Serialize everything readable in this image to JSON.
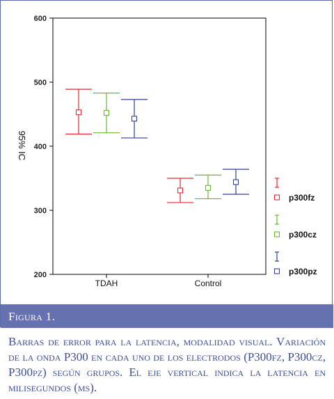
{
  "chart_data": {
    "type": "errorbar",
    "ylabel": "95% IC",
    "ylim": [
      200,
      600
    ],
    "yticks": [
      "200",
      "300",
      "400",
      "500",
      "600"
    ],
    "categories": [
      "TDAH",
      "Control"
    ],
    "grid": false,
    "legend_position": "right",
    "series": [
      {
        "name": "p300fz",
        "color": "#e8262b",
        "mean": [
          453,
          331
        ],
        "lower": [
          419,
          312
        ],
        "upper": [
          489,
          350
        ]
      },
      {
        "name": "p300cz",
        "color": "#66bb2e",
        "mean": [
          452,
          335
        ],
        "lower": [
          421,
          318
        ],
        "upper": [
          483,
          355
        ]
      },
      {
        "name": "p300pz",
        "color": "#2c3f9e",
        "mean": [
          443,
          344
        ],
        "lower": [
          413,
          325
        ],
        "upper": [
          473,
          364
        ]
      }
    ]
  },
  "figure_label": "Figura 1.",
  "caption": "Barras de error para la latencia, modalidad visual. Variación de la onda P300 en cada uno de los electrodos (P300fz, P300cz, P300pz) según grupos. El eje vertical indica la latencia en milisegundos (ms)."
}
